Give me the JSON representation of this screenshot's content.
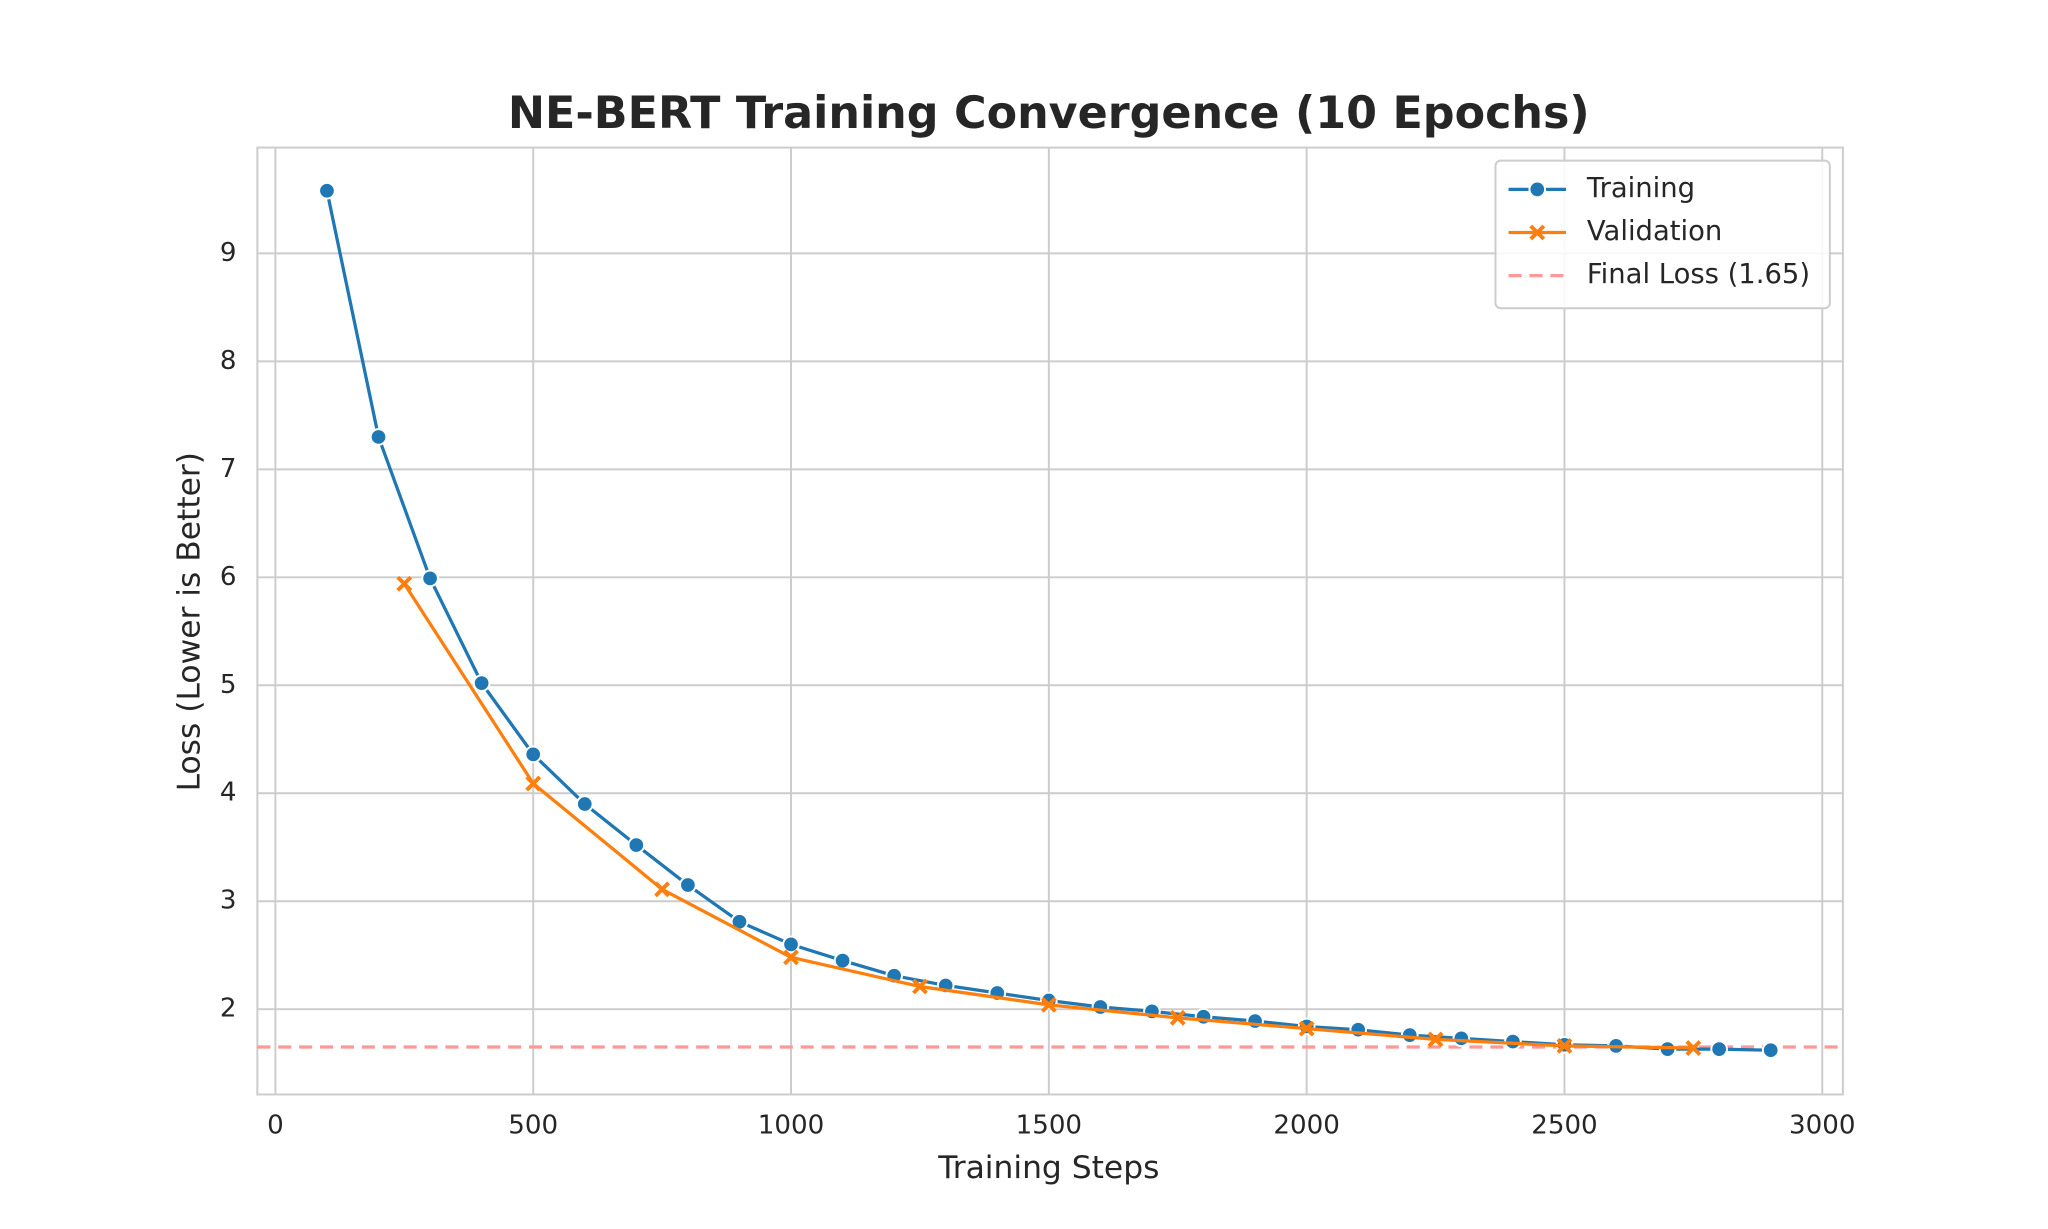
{
  "chart_data": {
    "type": "line",
    "title": "NE-BERT Training Convergence (10 Epochs)",
    "xlabel": "Training Steps",
    "ylabel": "Loss (Lower is Better)",
    "xlim": [
      -35,
      3040
    ],
    "ylim": [
      1.21,
      9.98
    ],
    "xticks": [
      0,
      500,
      1000,
      1500,
      2000,
      2500,
      3000
    ],
    "yticks": [
      2,
      3,
      4,
      5,
      6,
      7,
      8,
      9
    ],
    "grid": true,
    "legend": "upper right",
    "series": [
      {
        "name": "Training",
        "color": "#1f77b4",
        "marker": "circle",
        "x": [
          100,
          200,
          300,
          400,
          500,
          600,
          700,
          800,
          900,
          1000,
          1100,
          1200,
          1300,
          1400,
          1500,
          1600,
          1700,
          1800,
          1900,
          2000,
          2100,
          2200,
          2300,
          2400,
          2500,
          2600,
          2700,
          2800,
          2900
        ],
        "values": [
          9.58,
          7.3,
          5.99,
          5.02,
          4.36,
          3.9,
          3.52,
          3.15,
          2.81,
          2.6,
          2.45,
          2.31,
          2.22,
          2.15,
          2.08,
          2.02,
          1.98,
          1.93,
          1.89,
          1.84,
          1.81,
          1.76,
          1.73,
          1.7,
          1.67,
          1.66,
          1.63,
          1.63,
          1.62
        ]
      },
      {
        "name": "Validation",
        "color": "#ff7f0e",
        "marker": "x",
        "x": [
          250,
          500,
          750,
          1000,
          1250,
          1500,
          1750,
          2000,
          2250,
          2500,
          2750
        ],
        "values": [
          5.94,
          4.09,
          3.11,
          2.48,
          2.21,
          2.04,
          1.92,
          1.82,
          1.72,
          1.66,
          1.64
        ]
      }
    ],
    "hline": {
      "name": "Final Loss (1.65)",
      "value": 1.65,
      "color": "#ff9896"
    }
  }
}
